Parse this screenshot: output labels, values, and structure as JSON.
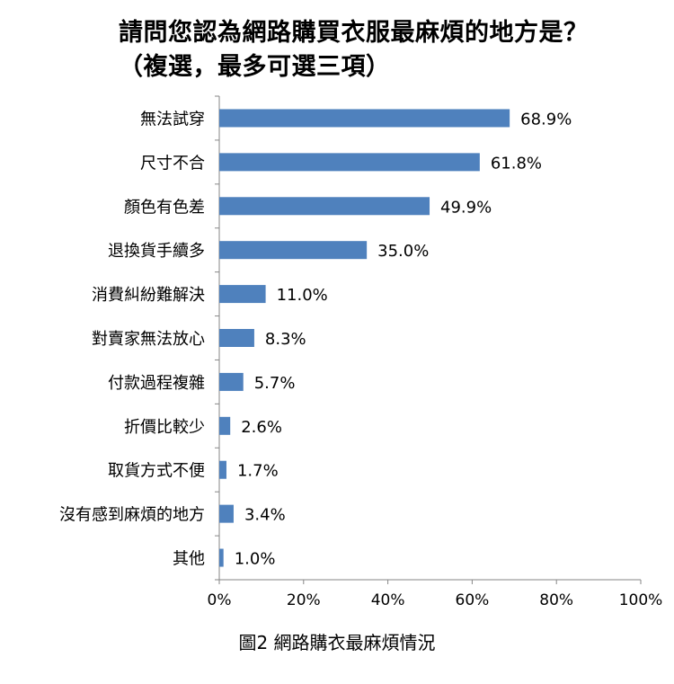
{
  "chart_data": {
    "type": "bar",
    "orientation": "horizontal",
    "title_lines": [
      "請問您認為網路購買衣服最麻煩的地方是？",
      "（複選，最多可選三項）"
    ],
    "categories": [
      "無法試穿",
      "尺寸不合",
      "顏色有色差",
      "退換貨手續多",
      "消費糾紛難解決",
      "對賣家無法放心",
      "付款過程複雜",
      "折價比較少",
      "取貨方式不便",
      "沒有感到麻煩的地方",
      "其他"
    ],
    "values": [
      68.9,
      61.8,
      49.9,
      35.0,
      11.0,
      8.3,
      5.7,
      2.6,
      1.7,
      3.4,
      1.0
    ],
    "value_labels": [
      "68.9%",
      "61.8%",
      "49.9%",
      "35.0%",
      "11.0%",
      "8.3%",
      "5.7%",
      "2.6%",
      "1.7%",
      "3.4%",
      "1.0%"
    ],
    "xlim": [
      0,
      100
    ],
    "x_ticks": [
      0,
      20,
      40,
      60,
      80,
      100
    ],
    "x_tick_labels": [
      "0%",
      "20%",
      "40%",
      "60%",
      "80%",
      "100%"
    ],
    "grid": false,
    "legend": "none",
    "bar_color": "#4f81bd",
    "axis_color": "#868686"
  },
  "caption": "圖2 網路購衣最麻煩情況"
}
